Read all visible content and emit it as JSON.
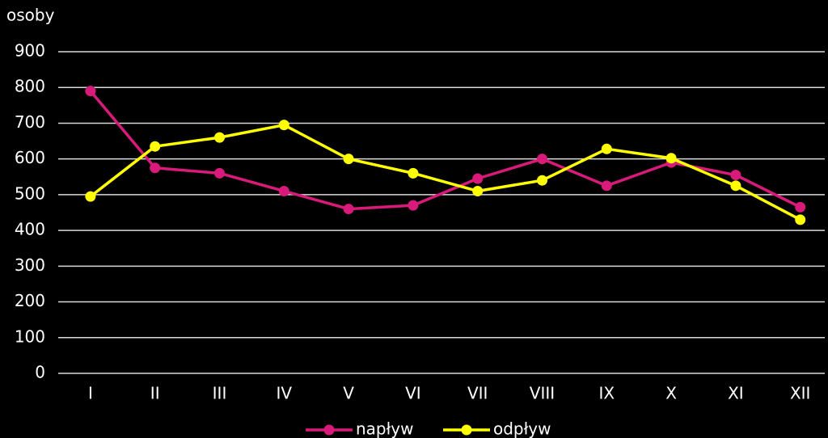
{
  "chart_data": {
    "type": "line",
    "y_label": "osoby",
    "categories": [
      "I",
      "II",
      "III",
      "IV",
      "V",
      "VI",
      "VII",
      "VIII",
      "IX",
      "X",
      "XI",
      "XII"
    ],
    "series": [
      {
        "name": "napływ",
        "color": "#d81b7a",
        "values": [
          790,
          575,
          560,
          510,
          460,
          470,
          545,
          600,
          525,
          590,
          555,
          465
        ]
      },
      {
        "name": "odpływ",
        "color": "#ffff00",
        "values": [
          495,
          635,
          660,
          695,
          600,
          560,
          510,
          540,
          628,
          602,
          525,
          430
        ]
      }
    ],
    "ylim": [
      0,
      900
    ],
    "yticks": [
      0,
      100,
      200,
      300,
      400,
      500,
      600,
      700,
      800,
      900
    ],
    "grid": true,
    "legend": "bottom"
  }
}
